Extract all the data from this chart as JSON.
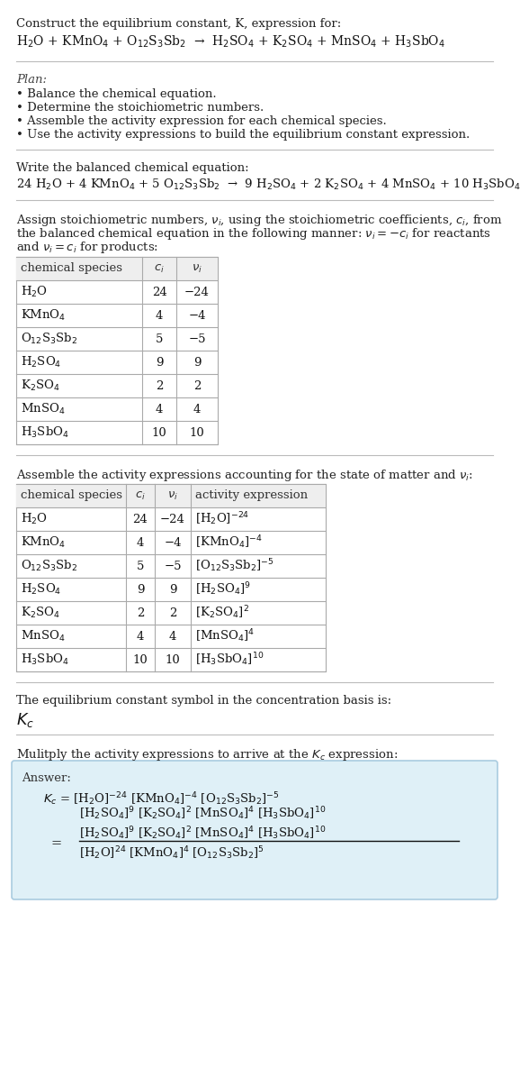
{
  "bg_color": "#ffffff",
  "title_line1": "Construct the equilibrium constant, K, expression for:",
  "reaction_unbalanced": "H$_2$O + KMnO$_4$ + O$_{12}$S$_3$Sb$_2$  →  H$_2$SO$_4$ + K$_2$SO$_4$ + MnSO$_4$ + H$_3$SbO$_4$",
  "plan_title": "Plan:",
  "plan_bullets": [
    "• Balance the chemical equation.",
    "• Determine the stoichiometric numbers.",
    "• Assemble the activity expression for each chemical species.",
    "• Use the activity expressions to build the equilibrium constant expression."
  ],
  "balanced_eq_label": "Write the balanced chemical equation:",
  "balanced_eq": "24 H$_2$O + 4 KMnO$_4$ + 5 O$_{12}$S$_3$Sb$_2$  →  9 H$_2$SO$_4$ + 2 K$_2$SO$_4$ + 4 MnSO$_4$ + 10 H$_3$SbO$_4$",
  "stoich_intro": "Assign stoichiometric numbers, $\\nu_i$, using the stoichiometric coefficients, $c_i$, from\nthe balanced chemical equation in the following manner: $\\nu_i = -c_i$ for reactants\nand $\\nu_i = c_i$ for products:",
  "table1_headers": [
    "chemical species",
    "$c_i$",
    "$\\nu_i$"
  ],
  "table1_data": [
    [
      "H$_2$O",
      "24",
      "−24"
    ],
    [
      "KMnO$_4$",
      "4",
      "−4"
    ],
    [
      "O$_{12}$S$_3$Sb$_2$",
      "5",
      "−5"
    ],
    [
      "H$_2$SO$_4$",
      "9",
      "9"
    ],
    [
      "K$_2$SO$_4$",
      "2",
      "2"
    ],
    [
      "MnSO$_4$",
      "4",
      "4"
    ],
    [
      "H$_3$SbO$_4$",
      "10",
      "10"
    ]
  ],
  "activity_intro": "Assemble the activity expressions accounting for the state of matter and $\\nu_i$:",
  "table2_headers": [
    "chemical species",
    "$c_i$",
    "$\\nu_i$",
    "activity expression"
  ],
  "table2_data": [
    [
      "H$_2$O",
      "24",
      "−24",
      "[H$_2$O]$^{-24}$"
    ],
    [
      "KMnO$_4$",
      "4",
      "−4",
      "[KMnO$_4$]$^{-4}$"
    ],
    [
      "O$_{12}$S$_3$Sb$_2$",
      "5",
      "−5",
      "[O$_{12}$S$_3$Sb$_2$]$^{-5}$"
    ],
    [
      "H$_2$SO$_4$",
      "9",
      "9",
      "[H$_2$SO$_4$]$^9$"
    ],
    [
      "K$_2$SO$_4$",
      "2",
      "2",
      "[K$_2$SO$_4$]$^2$"
    ],
    [
      "MnSO$_4$",
      "4",
      "4",
      "[MnSO$_4$]$^4$"
    ],
    [
      "H$_3$SbO$_4$",
      "10",
      "10",
      "[H$_3$SbO$_4$]$^{10}$"
    ]
  ],
  "kc_intro": "The equilibrium constant symbol in the concentration basis is:",
  "kc_symbol": "$K_c$",
  "multiply_intro": "Mulitply the activity expressions to arrive at the $K_c$ expression:",
  "answer_box_color": "#dff0f7",
  "answer_box_border": "#aacce0",
  "answer_label": "Answer:",
  "answer_line1": "$K_c$ = [H$_2$O]$^{-24}$ [KMnO$_4$]$^{-4}$ [O$_{12}$S$_3$Sb$_2$]$^{-5}$",
  "answer_line2": "[H$_2$SO$_4$]$^9$ [K$_2$SO$_4$]$^2$ [MnSO$_4$]$^4$ [H$_3$SbO$_4$]$^{10}$",
  "answer_numer": "[H$_2$SO$_4$]$^9$ [K$_2$SO$_4$]$^2$ [MnSO$_4$]$^4$ [H$_3$SbO$_4$]$^{10}$",
  "answer_denom": "[H$_2$O]$^{24}$ [KMnO$_4$]$^4$ [O$_{12}$S$_3$Sb$_2$]$^5$"
}
